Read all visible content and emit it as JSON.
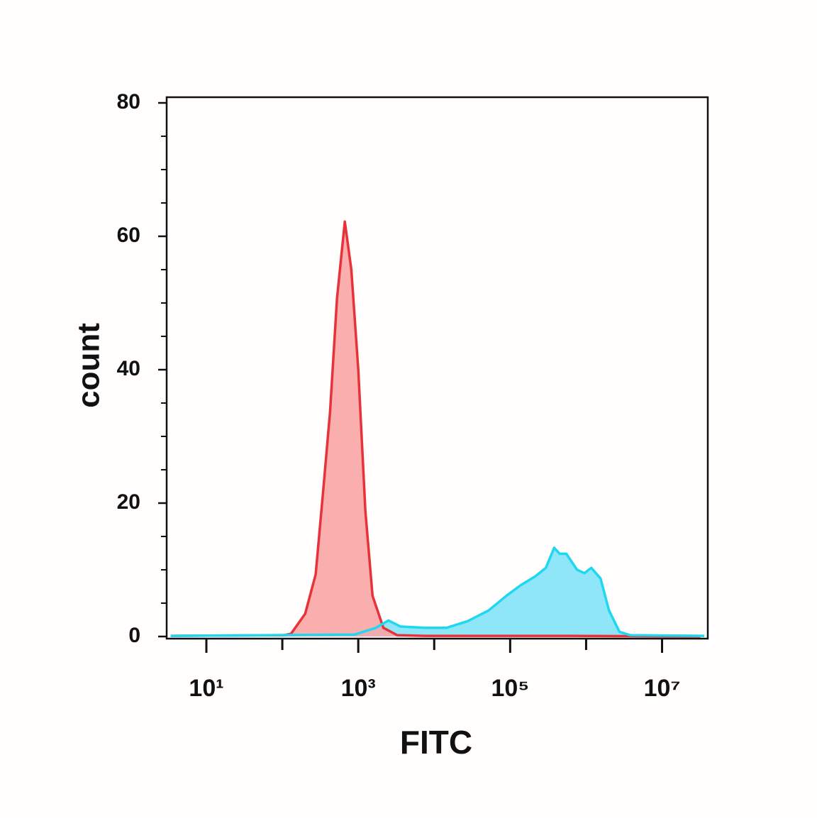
{
  "chart_data": {
    "type": "area",
    "xlabel": "FITC",
    "ylabel": "count",
    "xscale": "log",
    "xlim": [
      3,
      40000000
    ],
    "xticks": [
      {
        "value": 10,
        "label": "10¹"
      },
      {
        "value": 1000,
        "label": "10³"
      },
      {
        "value": 100000,
        "label": "10⁵"
      },
      {
        "value": 10000000,
        "label": "10⁷"
      }
    ],
    "xminorticks": [
      100,
      10000,
      1000000
    ],
    "ylim": [
      0,
      80
    ],
    "yticks": [
      0,
      20,
      40,
      60,
      80
    ],
    "yminorticks": [
      5,
      10,
      15,
      25,
      30,
      35,
      45,
      50,
      55,
      65,
      70,
      75
    ],
    "series": [
      {
        "color": "#e8323a",
        "fill": "#f9a5a5",
        "x": [
          3.4,
          105,
          130,
          200,
          275,
          340,
          425,
          525,
          665,
          810,
          1000,
          1240,
          1540,
          2140,
          3250,
          7600,
          550000,
          32000000
        ],
        "values": [
          0.1,
          0.2,
          0.4,
          3.4,
          9.3,
          21,
          33.7,
          50.7,
          62.2,
          55,
          40,
          18.8,
          6.1,
          1.3,
          0.2,
          0.1,
          0.1,
          0
        ]
      },
      {
        "color": "#1fd8f0",
        "fill": "#8ee6f8",
        "x": [
          3.4,
          900,
          1700,
          2500,
          3600,
          7600,
          14500,
          27500,
          52000,
          89000,
          138000,
          213000,
          295000,
          380000,
          450000,
          550000,
          760000,
          950000,
          1170000,
          1550000,
          2000000,
          2750000,
          3800000,
          36000000
        ],
        "values": [
          0.1,
          0.3,
          1.3,
          2.4,
          1.5,
          1.3,
          1.3,
          2.3,
          3.9,
          6.1,
          7.7,
          9.0,
          10.3,
          13.3,
          12.4,
          12.4,
          10.0,
          9.5,
          10.3,
          8.7,
          3.9,
          0.7,
          0.2,
          0.1
        ]
      }
    ]
  }
}
